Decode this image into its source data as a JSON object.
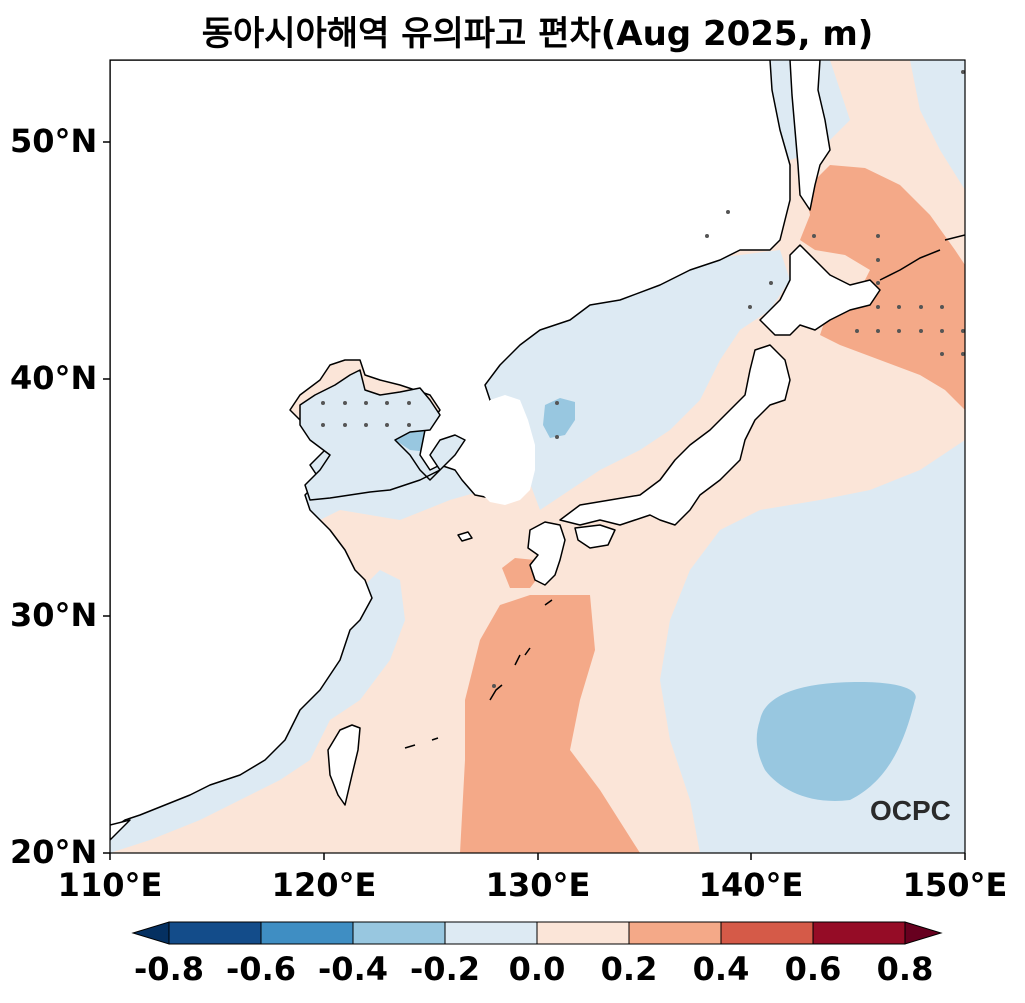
{
  "title": "동아시아해역 유의파고 편차(Aug 2025, m)",
  "logo_text": "OCPC",
  "lat_labels": [
    "50°N",
    "40°N",
    "30°N",
    "20°N"
  ],
  "lon_labels": [
    "110°E",
    "120°E",
    "130°E",
    "140°E",
    "150°E"
  ],
  "colorbar": {
    "labels": [
      "-0.8",
      "-0.6",
      "-0.4",
      "-0.2",
      "0.0",
      "0.2",
      "0.4",
      "0.6",
      "0.8"
    ],
    "colors": [
      "#053061",
      "#134c8a",
      "#3f8ec3",
      "#98c7e0",
      "#ddeaf3",
      "#fbe5d8",
      "#f4a988",
      "#d55a48",
      "#950c26",
      "#67001f"
    ]
  },
  "colors": {
    "land": "#ffffff",
    "coast": "#000000",
    "stipple": "#555555"
  }
}
